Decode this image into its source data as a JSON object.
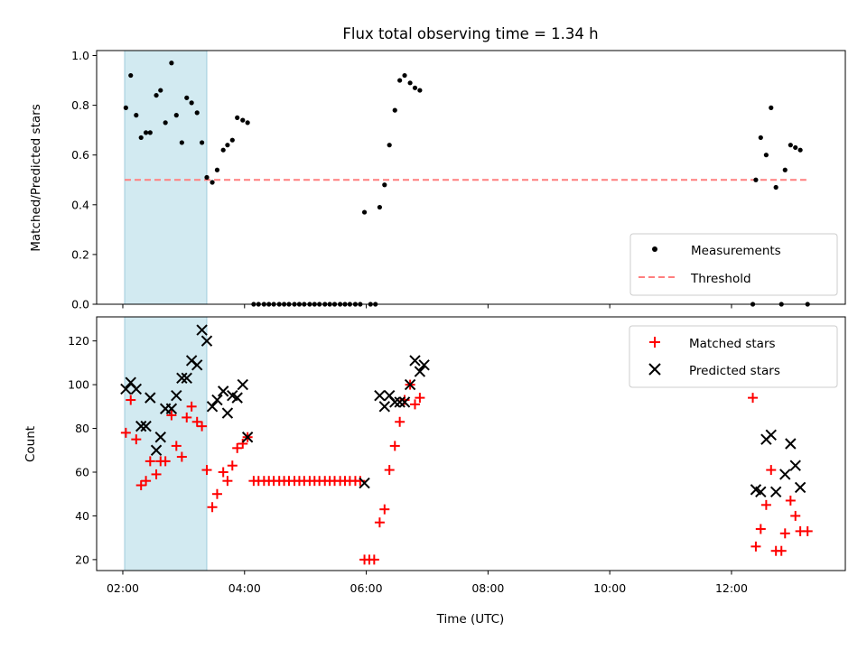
{
  "chart_data": [
    {
      "type": "scatter",
      "title": "Flux total observing time = 1.34 h",
      "ylabel": "Matched/Predicted stars",
      "xlabel": "",
      "xlim": [
        1.57,
        13.87
      ],
      "ylim": [
        0.0,
        1.02
      ],
      "x_ticks": [
        2,
        4,
        6,
        8,
        10,
        12
      ],
      "y_ticks": [
        0.0,
        0.2,
        0.4,
        0.6,
        0.8,
        1.0
      ],
      "y_tick_labels": [
        "0.0",
        "0.2",
        "0.4",
        "0.6",
        "0.8",
        "1.0"
      ],
      "shaded_span": {
        "x0": 2.03,
        "x1": 3.38,
        "color": "#add8e6"
      },
      "threshold": {
        "y": 0.5,
        "x0": 2.03,
        "x1": 13.23,
        "color": "#ff7f7f"
      },
      "legend_position": "lower right",
      "legend": [
        "Measurements",
        "Threshold"
      ],
      "series": [
        {
          "name": "Measurements",
          "color": "#000000",
          "points": [
            [
              2.05,
              0.79
            ],
            [
              2.13,
              0.92
            ],
            [
              2.22,
              0.76
            ],
            [
              2.3,
              0.67
            ],
            [
              2.38,
              0.69
            ],
            [
              2.45,
              0.69
            ],
            [
              2.55,
              0.84
            ],
            [
              2.62,
              0.86
            ],
            [
              2.7,
              0.73
            ],
            [
              2.8,
              0.97
            ],
            [
              2.88,
              0.76
            ],
            [
              2.97,
              0.65
            ],
            [
              3.05,
              0.83
            ],
            [
              3.13,
              0.81
            ],
            [
              3.22,
              0.77
            ],
            [
              3.3,
              0.65
            ],
            [
              3.38,
              0.51
            ],
            [
              3.47,
              0.49
            ],
            [
              3.55,
              0.54
            ],
            [
              3.65,
              0.62
            ],
            [
              3.72,
              0.64
            ],
            [
              3.8,
              0.66
            ],
            [
              3.88,
              0.75
            ],
            [
              3.97,
              0.74
            ],
            [
              4.05,
              0.73
            ],
            [
              4.15,
              0.0
            ],
            [
              4.23,
              0.0
            ],
            [
              4.32,
              0.0
            ],
            [
              4.4,
              0.0
            ],
            [
              4.48,
              0.0
            ],
            [
              4.57,
              0.0
            ],
            [
              4.65,
              0.0
            ],
            [
              4.73,
              0.0
            ],
            [
              4.82,
              0.0
            ],
            [
              4.9,
              0.0
            ],
            [
              4.98,
              0.0
            ],
            [
              5.07,
              0.0
            ],
            [
              5.15,
              0.0
            ],
            [
              5.23,
              0.0
            ],
            [
              5.32,
              0.0
            ],
            [
              5.4,
              0.0
            ],
            [
              5.48,
              0.0
            ],
            [
              5.57,
              0.0
            ],
            [
              5.65,
              0.0
            ],
            [
              5.73,
              0.0
            ],
            [
              5.82,
              0.0
            ],
            [
              5.9,
              0.0
            ],
            [
              6.07,
              0.0
            ],
            [
              6.15,
              0.0
            ],
            [
              5.97,
              0.37
            ],
            [
              6.22,
              0.39
            ],
            [
              6.3,
              0.48
            ],
            [
              6.38,
              0.64
            ],
            [
              6.47,
              0.78
            ],
            [
              6.55,
              0.9
            ],
            [
              6.63,
              0.92
            ],
            [
              6.72,
              0.89
            ],
            [
              6.8,
              0.87
            ],
            [
              6.88,
              0.86
            ],
            [
              12.35,
              0.0
            ],
            [
              12.4,
              0.5
            ],
            [
              12.48,
              0.67
            ],
            [
              12.57,
              0.6
            ],
            [
              12.65,
              0.79
            ],
            [
              12.73,
              0.47
            ],
            [
              12.82,
              0.0
            ],
            [
              12.88,
              0.54
            ],
            [
              12.97,
              0.64
            ],
            [
              13.05,
              0.63
            ],
            [
              13.13,
              0.62
            ],
            [
              13.25,
              0.0
            ]
          ]
        },
        {
          "name": "Threshold",
          "color": "#ff7f7f"
        }
      ]
    },
    {
      "type": "scatter",
      "title": "",
      "xlabel": "Time (UTC)",
      "ylabel": "Count",
      "xlim": [
        1.57,
        13.87
      ],
      "ylim": [
        15,
        131
      ],
      "x_ticks": [
        2,
        4,
        6,
        8,
        10,
        12
      ],
      "x_tick_labels": [
        "02:00",
        "04:00",
        "06:00",
        "08:00",
        "10:00",
        "12:00"
      ],
      "y_ticks": [
        20,
        40,
        60,
        80,
        100,
        120
      ],
      "y_tick_labels": [
        "20",
        "40",
        "60",
        "80",
        "100",
        "120"
      ],
      "shaded_span": {
        "x0": 2.03,
        "x1": 3.38,
        "color": "#add8e6"
      },
      "legend_position": "upper right",
      "legend": [
        "Matched stars",
        "Predicted stars"
      ],
      "series": [
        {
          "name": "Matched stars",
          "color": "#ff0000",
          "marker": "+",
          "points": [
            [
              2.05,
              78
            ],
            [
              2.13,
              93
            ],
            [
              2.22,
              75
            ],
            [
              2.3,
              54
            ],
            [
              2.38,
              56
            ],
            [
              2.45,
              65
            ],
            [
              2.55,
              59
            ],
            [
              2.62,
              65
            ],
            [
              2.7,
              65
            ],
            [
              2.8,
              86
            ],
            [
              2.88,
              72
            ],
            [
              2.97,
              67
            ],
            [
              3.05,
              85
            ],
            [
              3.13,
              90
            ],
            [
              3.22,
              83
            ],
            [
              3.3,
              81
            ],
            [
              3.38,
              61
            ],
            [
              3.47,
              44
            ],
            [
              3.55,
              50
            ],
            [
              3.65,
              60
            ],
            [
              3.72,
              56
            ],
            [
              3.8,
              63
            ],
            [
              3.88,
              71
            ],
            [
              3.97,
              73
            ],
            [
              4.05,
              76
            ],
            [
              4.15,
              56
            ],
            [
              4.23,
              56
            ],
            [
              4.32,
              56
            ],
            [
              4.4,
              56
            ],
            [
              4.48,
              56
            ],
            [
              4.57,
              56
            ],
            [
              4.65,
              56
            ],
            [
              4.73,
              56
            ],
            [
              4.82,
              56
            ],
            [
              4.9,
              56
            ],
            [
              4.98,
              56
            ],
            [
              5.07,
              56
            ],
            [
              5.15,
              56
            ],
            [
              5.23,
              56
            ],
            [
              5.32,
              56
            ],
            [
              5.4,
              56
            ],
            [
              5.48,
              56
            ],
            [
              5.57,
              56
            ],
            [
              5.65,
              56
            ],
            [
              5.73,
              56
            ],
            [
              5.82,
              56
            ],
            [
              5.9,
              56
            ],
            [
              5.97,
              20
            ],
            [
              6.05,
              20
            ],
            [
              6.13,
              20
            ],
            [
              6.22,
              37
            ],
            [
              6.3,
              43
            ],
            [
              6.38,
              61
            ],
            [
              6.47,
              72
            ],
            [
              6.55,
              83
            ],
            [
              6.63,
              93
            ],
            [
              6.72,
              100
            ],
            [
              6.8,
              91
            ],
            [
              6.88,
              94
            ],
            [
              12.35,
              94
            ],
            [
              12.4,
              26
            ],
            [
              12.48,
              34
            ],
            [
              12.57,
              45
            ],
            [
              12.65,
              61
            ],
            [
              12.73,
              24
            ],
            [
              12.82,
              24
            ],
            [
              12.88,
              32
            ],
            [
              12.97,
              47
            ],
            [
              13.05,
              40
            ],
            [
              13.13,
              33
            ],
            [
              13.25,
              33
            ]
          ]
        },
        {
          "name": "Predicted stars",
          "color": "#000000",
          "marker": "x",
          "points": [
            [
              2.05,
              98
            ],
            [
              2.13,
              101
            ],
            [
              2.22,
              98
            ],
            [
              2.3,
              81
            ],
            [
              2.38,
              81
            ],
            [
              2.45,
              94
            ],
            [
              2.55,
              70
            ],
            [
              2.62,
              76
            ],
            [
              2.7,
              89
            ],
            [
              2.8,
              89
            ],
            [
              2.88,
              95
            ],
            [
              2.97,
              103
            ],
            [
              3.05,
              103
            ],
            [
              3.13,
              111
            ],
            [
              3.22,
              109
            ],
            [
              3.3,
              125
            ],
            [
              3.38,
              120
            ],
            [
              3.47,
              90
            ],
            [
              3.55,
              93
            ],
            [
              3.65,
              97
            ],
            [
              3.72,
              87
            ],
            [
              3.8,
              95
            ],
            [
              3.88,
              94
            ],
            [
              3.97,
              100
            ],
            [
              4.05,
              76
            ],
            [
              5.97,
              55
            ],
            [
              6.22,
              95
            ],
            [
              6.3,
              90
            ],
            [
              6.38,
              95
            ],
            [
              6.47,
              92
            ],
            [
              6.55,
              92
            ],
            [
              6.63,
              92
            ],
            [
              6.72,
              100
            ],
            [
              6.8,
              111
            ],
            [
              6.88,
              106
            ],
            [
              6.95,
              109
            ],
            [
              12.4,
              52
            ],
            [
              12.48,
              51
            ],
            [
              12.57,
              75
            ],
            [
              12.65,
              77
            ],
            [
              12.73,
              51
            ],
            [
              12.88,
              59
            ],
            [
              12.97,
              73
            ],
            [
              13.05,
              63
            ],
            [
              13.13,
              53
            ]
          ]
        }
      ]
    }
  ]
}
